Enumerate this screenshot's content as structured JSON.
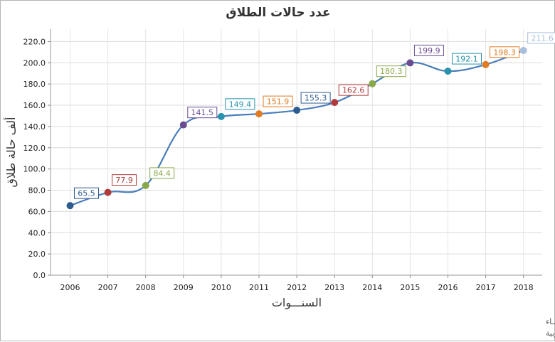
{
  "chart_data": {
    "type": "line",
    "title": "عدد حالات الطلاق",
    "xlabel": "السنـــوات",
    "ylabel": "ألف حالة طلاق",
    "categories": [
      "2006",
      "2007",
      "2008",
      "2009",
      "2010",
      "2011",
      "2012",
      "2013",
      "2014",
      "2015",
      "2016",
      "2017",
      "2018"
    ],
    "series": [
      {
        "values": [
          65.5,
          77.9,
          84.4,
          141.5,
          149.4,
          151.9,
          155.3,
          162.6,
          180.3,
          199.9,
          192.1,
          198.3,
          211.6
        ],
        "line_color": "#4a7ebb",
        "point_colors": [
          "#2e5c8f",
          "#b03a3a",
          "#88a84a",
          "#6a4c93",
          "#2a92ad",
          "#e07b22",
          "#2e5c8f",
          "#b03a3a",
          "#88a84a",
          "#6a4c93",
          "#2a92ad",
          "#e07b22",
          "#a8bfdc"
        ]
      }
    ],
    "ylim": [
      0,
      220
    ],
    "yticks": [
      "0.0",
      "20.0",
      "40.0",
      "60.0",
      "80.0",
      "100.0",
      "120.0",
      "140.0",
      "160.0",
      "180.0",
      "200.0",
      "220.0"
    ],
    "data_labels": [
      "65.5",
      "77.9",
      "84.4",
      "141.5",
      "149.4",
      "151.9",
      "155.3",
      "162.6",
      "180.3",
      "199.9",
      "192.1",
      "198.3",
      "211.6"
    ],
    "grid": true,
    "legend": false
  },
  "footnotes": [
    "حقوق الملكية للجهــاز المركزي للتعبئة العــامة والأحصـــاء",
    "المصدر الأساسي للأحصاءات الرسمية لجمهورية مصر العربية"
  ]
}
